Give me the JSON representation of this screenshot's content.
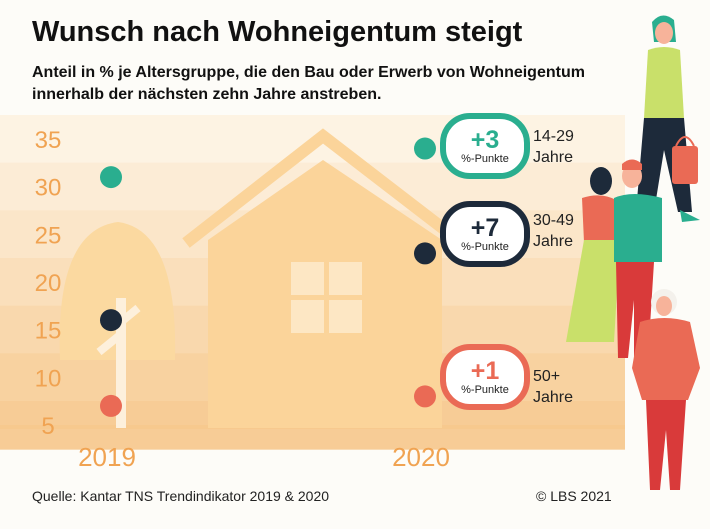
{
  "title": "Wunsch nach Wohneigentum steigt",
  "subtitle": "Anteil in % je Altersgruppe, die den Bau oder Erwerb von Wohneigentum innerhalb der nächsten zehn Jahre anstreben.",
  "source": "Quelle: Kantar TNS Trendindikator 2019 & 2020",
  "copyright": "© LBS 2021",
  "chart_data": {
    "type": "scatter",
    "x": [
      "2019",
      "2020"
    ],
    "y_ticks": [
      35,
      30,
      25,
      20,
      15,
      10,
      5
    ],
    "ylim": [
      5,
      35
    ],
    "series": [
      {
        "name": "14-29 Jahre",
        "values": [
          31,
          34
        ],
        "color": "#2aae8f",
        "change": "+3",
        "unit": "%-Punkte"
      },
      {
        "name": "30-49 Jahre",
        "values": [
          16,
          23
        ],
        "color": "#1d2a3a",
        "change": "+7",
        "unit": "%-Punkte"
      },
      {
        "name": "50+ Jahre",
        "values": [
          7,
          8
        ],
        "color": "#ea6a55",
        "change": "+1",
        "unit": "%-Punkte"
      }
    ],
    "colors": {
      "tick_labels": "#f0a352",
      "band_light": "#fdf2e2",
      "band_dark": "#f8d9a8"
    }
  }
}
